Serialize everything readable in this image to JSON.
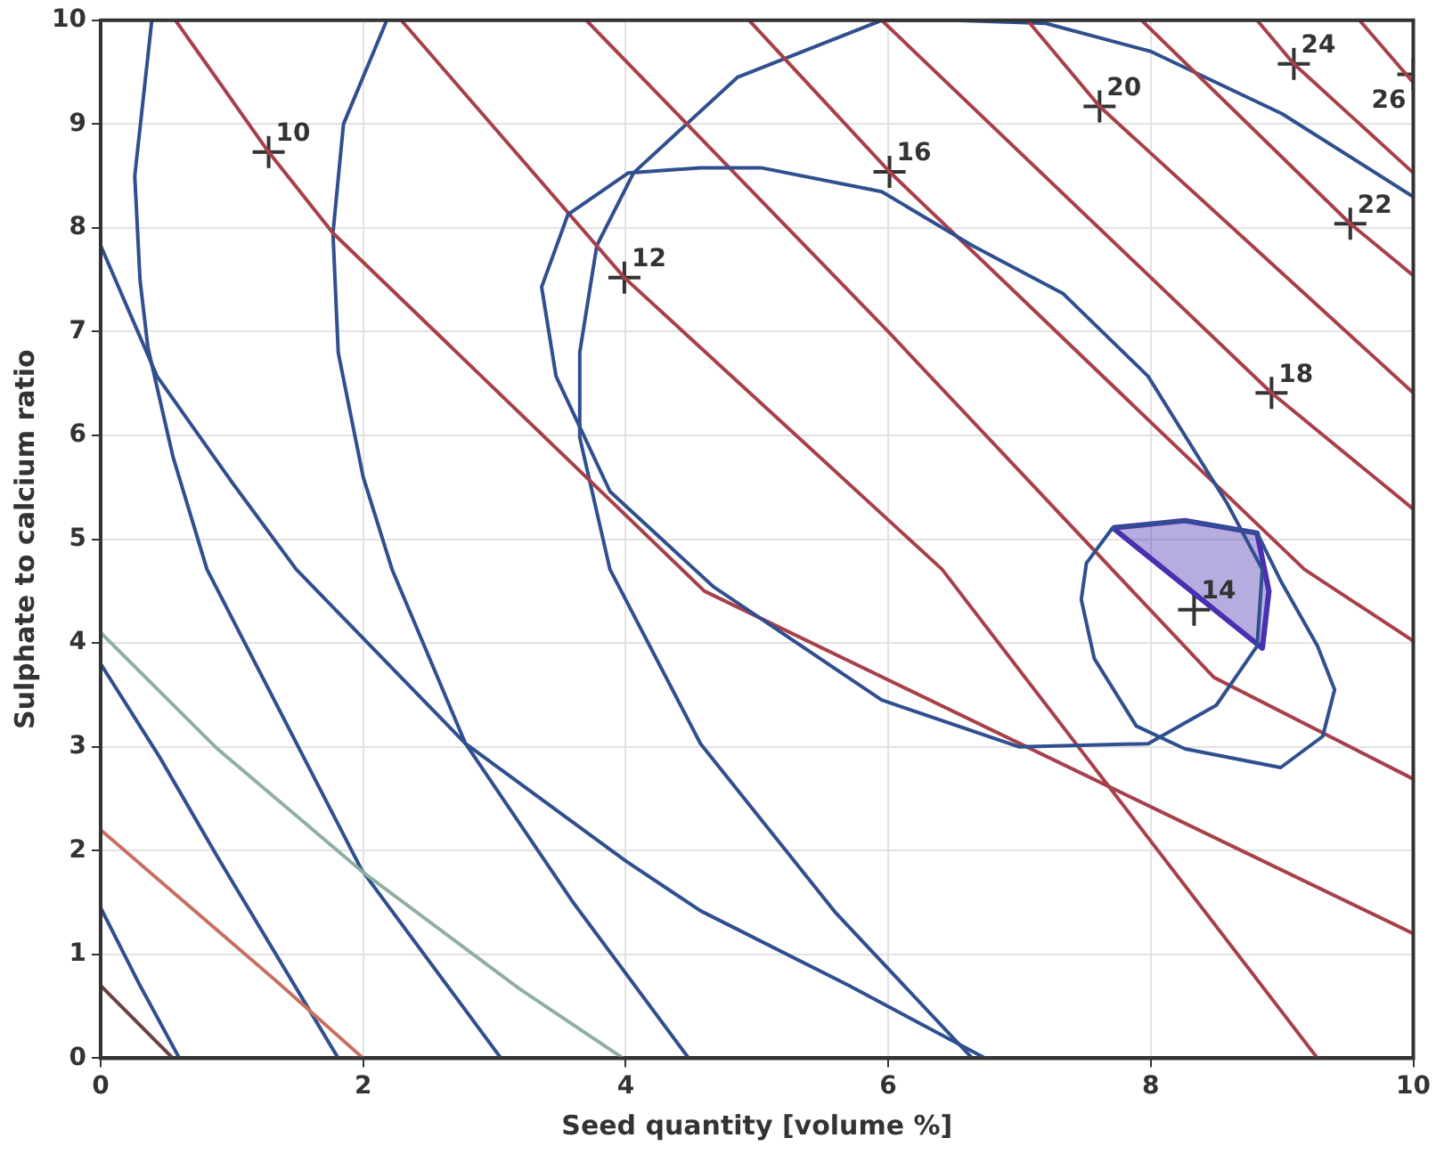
{
  "chart_data": {
    "type": "line",
    "xlabel": "Seed quantity [volume %]",
    "ylabel": "Sulphate to calcium ratio",
    "xlim": [
      0,
      10
    ],
    "ylim": [
      0,
      10
    ],
    "xticks": [
      0,
      2,
      4,
      6,
      8,
      10
    ],
    "yticks": [
      0,
      1,
      2,
      3,
      4,
      5,
      6,
      7,
      8,
      9,
      10
    ],
    "grid": true,
    "legend": false,
    "line_style": "solid",
    "marker": "none",
    "series": [
      {
        "color": "#6a4040",
        "x": [
          0,
          0.55
        ],
        "values": [
          0.7,
          0
        ]
      },
      {
        "color": "#c87060",
        "x": [
          0,
          1.35,
          2.0
        ],
        "values": [
          2.2,
          0.73,
          0
        ]
      },
      {
        "color": "#a8404a",
        "x": [
          0.57,
          1.28,
          1.77,
          4.6,
          10
        ],
        "values": [
          10,
          8.73,
          7.95,
          4.5,
          1.2
        ]
      },
      {
        "color": "#a8404a",
        "x": [
          2.29,
          3.99,
          6.41,
          9.27
        ],
        "values": [
          10,
          7.52,
          4.71,
          0
        ]
      },
      {
        "color": "#a8404a",
        "x": [
          3.7,
          6.0,
          8.48,
          10
        ],
        "values": [
          10,
          7.0,
          3.67,
          2.69
        ]
      },
      {
        "color": "#a8404a",
        "x": [
          4.94,
          6.01,
          9.17,
          10
        ],
        "values": [
          10,
          8.54,
          4.71,
          4.02
        ]
      },
      {
        "color": "#a8404a",
        "x": [
          5.95,
          8.92,
          10
        ],
        "values": [
          10,
          6.41,
          5.29
        ]
      },
      {
        "color": "#a8404a",
        "x": [
          7.06,
          7.61,
          10
        ],
        "values": [
          10,
          9.17,
          6.41
        ]
      },
      {
        "color": "#a8404a",
        "x": [
          7.93,
          9.52,
          10
        ],
        "values": [
          10,
          8.04,
          7.54
        ]
      },
      {
        "color": "#a8404a",
        "x": [
          8.81,
          9.09,
          10
        ],
        "values": [
          10,
          9.58,
          8.53
        ]
      },
      {
        "color": "#a8404a",
        "x": [
          9.59,
          10
        ],
        "values": [
          10,
          9.4
        ]
      },
      {
        "color": "#8fb0a0",
        "x": [
          0,
          0.89,
          1.99,
          3.19,
          3.98
        ],
        "values": [
          4.1,
          2.98,
          1.8,
          0.67,
          0
        ]
      },
      {
        "color": "#2f4f8f",
        "x": [
          0,
          0.3,
          0.6
        ],
        "values": [
          1.45,
          0.7,
          0
        ]
      },
      {
        "color": "#2f4f8f",
        "x": [
          0,
          0.45,
          0.89,
          1.81
        ],
        "values": [
          3.8,
          2.9,
          1.94,
          0
        ]
      },
      {
        "color": "#2f4f8f",
        "x": [
          0.39,
          0.26,
          0.3,
          0.36,
          0.55,
          0.81,
          1.99,
          3.05
        ],
        "values": [
          10,
          8.5,
          7.5,
          6.85,
          5.8,
          4.71,
          1.81,
          0
        ]
      },
      {
        "color": "#2f4f8f",
        "x": [
          2.18,
          1.85,
          1.77,
          1.81,
          2.0,
          2.22,
          2.78,
          3.6,
          4.48
        ],
        "values": [
          10,
          9,
          7.95,
          6.8,
          5.6,
          4.71,
          3.03,
          1.5,
          0
        ]
      },
      {
        "color": "#2f4f8f",
        "x": [
          0,
          0.43,
          1.0,
          1.49,
          2.78,
          4.0,
          4.57,
          5.7,
          6.74
        ],
        "values": [
          7.83,
          6.57,
          5.55,
          4.71,
          3.03,
          1.9,
          1.42,
          0.7,
          0
        ]
      },
      {
        "color": "#2f4f8f",
        "x": [
          10,
          9.0,
          8.0,
          7.2,
          6.5,
          5.95,
          4.85,
          4.06,
          3.78,
          3.65,
          3.65,
          3.88,
          4.57,
          5.6,
          6.64
        ],
        "values": [
          8.3,
          9.1,
          9.7,
          9.97,
          10,
          10,
          9.45,
          8.53,
          7.83,
          6.8,
          5.98,
          4.71,
          3.03,
          1.4,
          0
        ]
      },
      {
        "type": "area",
        "color": "#4a2fb0",
        "x": [
          7.71,
          8.26,
          8.81,
          8.9,
          8.85,
          7.71
        ],
        "values": [
          5.11,
          5.18,
          5.06,
          4.5,
          3.95,
          5.11
        ]
      },
      {
        "type": "scatter",
        "color": "#333333",
        "marker": "cross",
        "x": [
          1.28,
          3.99,
          6.01,
          7.61,
          9.09,
          10,
          9.52,
          8.92,
          8.33
        ],
        "values": [
          8.73,
          7.52,
          8.54,
          9.17,
          9.58,
          9.48,
          8.04,
          6.41,
          4.32
        ]
      }
    ],
    "annotations": [
      {
        "text": "10",
        "x": 1.28,
        "y": 8.73
      },
      {
        "text": "12",
        "x": 3.99,
        "y": 7.52
      },
      {
        "text": "16",
        "x": 6.01,
        "y": 8.54
      },
      {
        "text": "20",
        "x": 7.61,
        "y": 9.17
      },
      {
        "text": "24",
        "x": 9.09,
        "y": 9.58
      },
      {
        "text": "26",
        "x": 10,
        "y": 9.48
      },
      {
        "text": "22",
        "x": 9.52,
        "y": 8.04
      },
      {
        "text": "18",
        "x": 8.92,
        "y": 6.41
      },
      {
        "text": "14",
        "x": 8.33,
        "y": 4.32
      }
    ]
  }
}
